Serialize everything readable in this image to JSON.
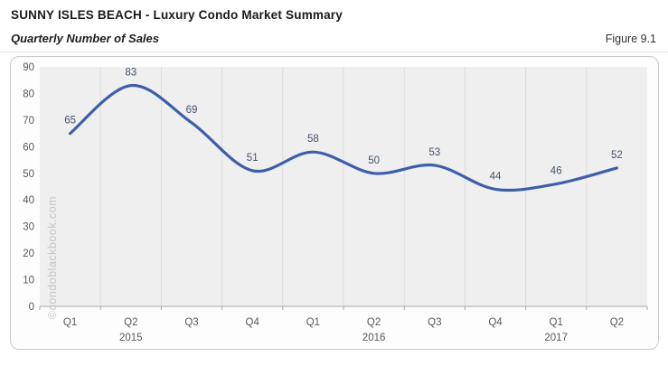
{
  "header": {
    "title": "SUNNY ISLES BEACH - Luxury Condo Market Summary",
    "subtitle": "Quarterly Number of Sales",
    "figure_label": "Figure 9.1"
  },
  "watermark": "©condoblackbook.com",
  "chart_data": {
    "type": "line",
    "title": "Quarterly Number of Sales",
    "categories": [
      "Q1",
      "Q2",
      "Q3",
      "Q4",
      "Q1",
      "Q2",
      "Q3",
      "Q4",
      "Q1",
      "Q2"
    ],
    "year_labels": [
      {
        "text": "2015",
        "index": 1
      },
      {
        "text": "2016",
        "index": 5
      },
      {
        "text": "2017",
        "index": 8
      }
    ],
    "values": [
      65,
      83,
      69,
      51,
      58,
      50,
      53,
      44,
      46,
      52
    ],
    "xlabel": "",
    "ylabel": "",
    "ylim": [
      0,
      90
    ],
    "ytick_step": 10,
    "grid": "vertical-only",
    "legend": "none",
    "smooth": true,
    "colors": {
      "line": "#3d5fa9",
      "data_label": "#44546a",
      "axis_label": "#595959",
      "plot_background": "#efefef",
      "gridline": "#dcdcdc",
      "axis_line": "#a6a6a6"
    }
  }
}
